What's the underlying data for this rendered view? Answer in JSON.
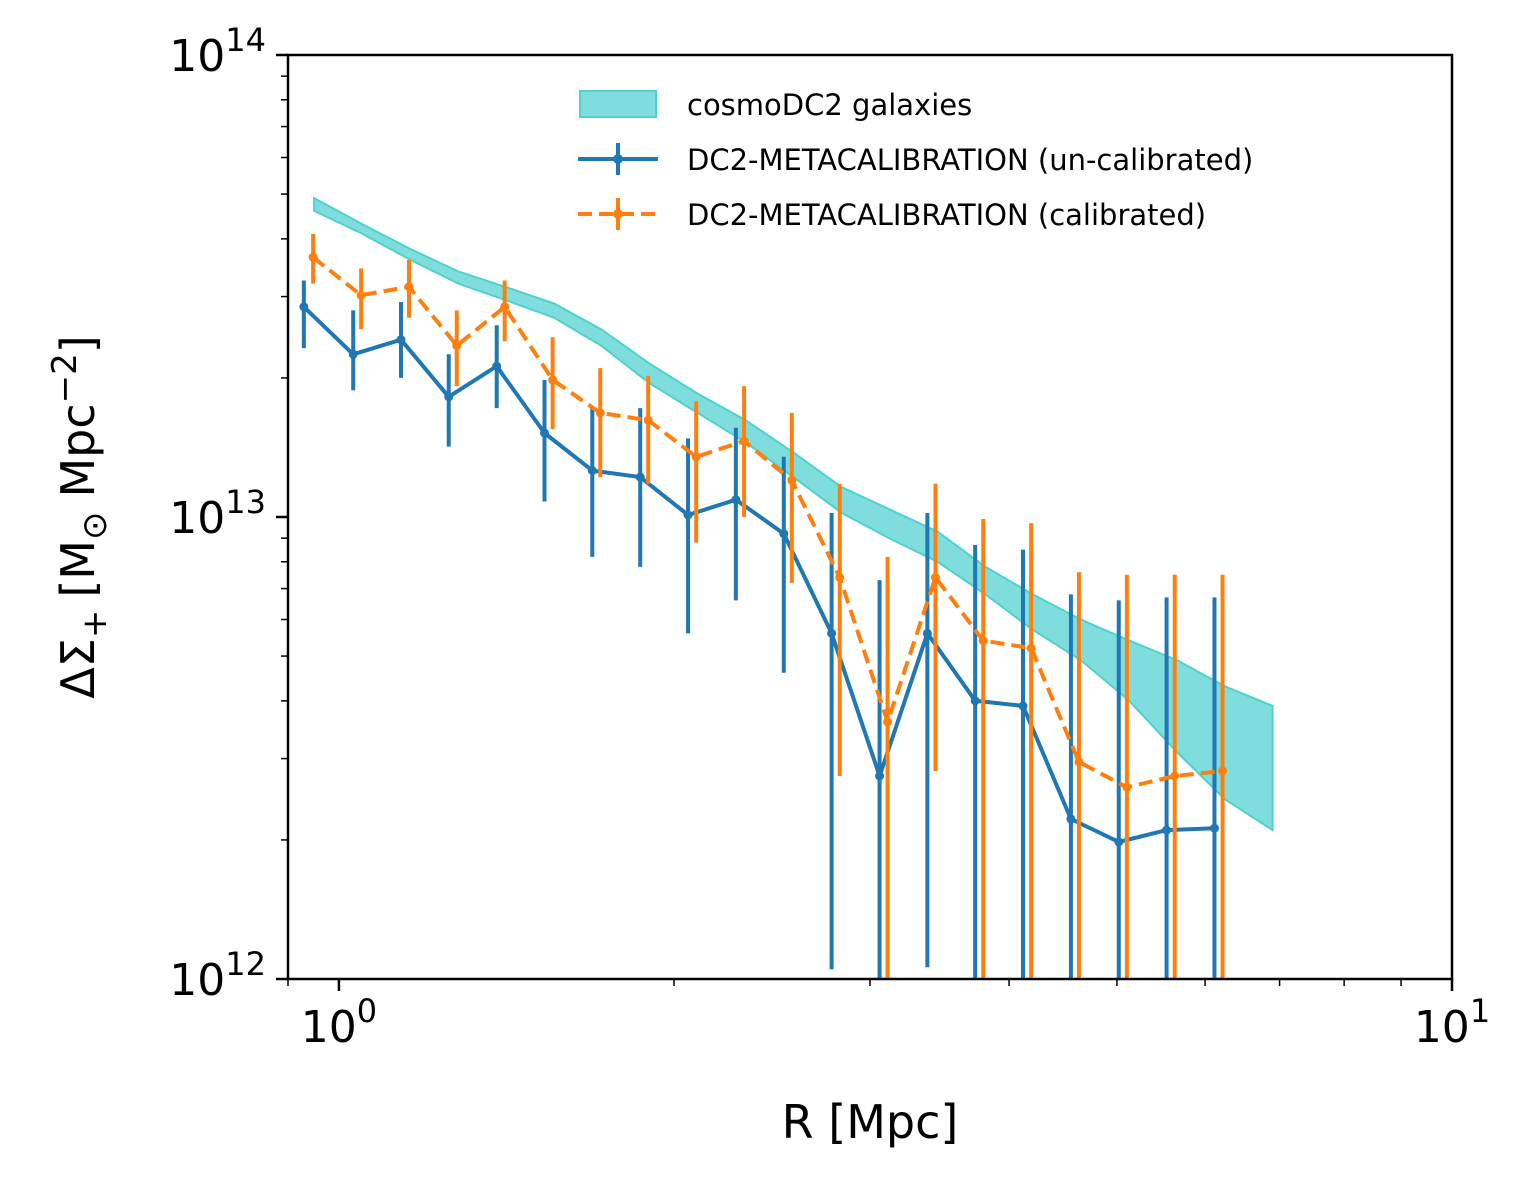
{
  "chart_data": {
    "type": "line",
    "xscale": "log",
    "yscale": "log",
    "xlim": [
      0.9,
      10
    ],
    "ylim": [
      1000000000000.0,
      100000000000000.0
    ],
    "xlabel": "R [Mpc]",
    "ylabel": "ΔΣ₊ [M⊙ Mpc⁻²]",
    "ylabel_parts": {
      "main": "ΔΣ",
      "sub": "+",
      "bracket_open": "[M",
      "sun": "⊙",
      "unit": "Mpc",
      "exp": "−2",
      "bracket_close": "]"
    },
    "x_ticks": [
      {
        "base": "10",
        "exp": "0",
        "value": 1
      },
      {
        "base": "10",
        "exp": "1",
        "value": 10
      }
    ],
    "y_ticks": [
      {
        "base": "10",
        "exp": "12",
        "value": 1000000000000.0
      },
      {
        "base": "10",
        "exp": "13",
        "value": 10000000000000.0
      },
      {
        "base": "10",
        "exp": "14",
        "value": 100000000000000.0
      }
    ],
    "legend_position": "upper-right",
    "band": {
      "name": "cosmoDC2 galaxies",
      "color": "#7fdedd",
      "edge_color": "#4fd1cc",
      "x": [
        0.95,
        1.05,
        1.16,
        1.28,
        1.41,
        1.56,
        1.72,
        1.9,
        2.1,
        2.32,
        2.56,
        2.83,
        3.12,
        3.45,
        3.81,
        4.2,
        4.64,
        5.13,
        5.66,
        6.25,
        6.9
      ],
      "lower": [
        46000000000000.0,
        41000000000000.0,
        36000000000000.0,
        32000000000000.0,
        29500000000000.0,
        27000000000000.0,
        23500000000000.0,
        19500000000000.0,
        16800000000000.0,
        14500000000000.0,
        12200000000000.0,
        10200000000000.0,
        9000000000000.0,
        8000000000000.0,
        6800000000000.0,
        5700000000000.0,
        4900000000000.0,
        4000000000000.0,
        3100000000000.0,
        2450000000000.0,
        2100000000000.0
      ],
      "upper": [
        49000000000000.0,
        43000000000000.0,
        38000000000000.0,
        34000000000000.0,
        31500000000000.0,
        29000000000000.0,
        25500000000000.0,
        21500000000000.0,
        18500000000000.0,
        16200000000000.0,
        13800000000000.0,
        11600000000000.0,
        10400000000000.0,
        9300000000000.0,
        7800000000000.0,
        6800000000000.0,
        6000000000000.0,
        5400000000000.0,
        4900000000000.0,
        4300000000000.0,
        3900000000000.0
      ]
    },
    "series": [
      {
        "name": "DC2-METACALIBRATION (un-calibrated)",
        "color": "#1f77b4",
        "dashed": false,
        "x": [
          0.93,
          1.03,
          1.137,
          1.255,
          1.386,
          1.53,
          1.689,
          1.865,
          2.059,
          2.273,
          2.51,
          2.771,
          3.06,
          3.378,
          3.729,
          4.117,
          4.546,
          5.019,
          5.541,
          6.118
        ],
        "y": [
          28500000000000.0,
          22500000000000.0,
          24200000000000.0,
          18200000000000.0,
          21200000000000.0,
          15200000000000.0,
          12600000000000.0,
          12200000000000.0,
          10100000000000.0,
          10900000000000.0,
          9200000000000.0,
          5600000000000.0,
          2750000000000.0,
          5600000000000.0,
          4000000000000.0,
          3900000000000.0,
          2220000000000.0,
          1980000000000.0,
          2100000000000.0,
          2120000000000.0
        ],
        "y_low": [
          23200000000000.0,
          18800000000000.0,
          20000000000000.0,
          14200000000000.0,
          17200000000000.0,
          10800000000000.0,
          8200000000000.0,
          7800000000000.0,
          5600000000000.0,
          6600000000000.0,
          4600000000000.0,
          1050000000000.0,
          900000000000.0,
          1060000000000.0,
          900000000000.0,
          900000000000.0,
          900000000000.0,
          900000000000.0,
          900000000000.0,
          900000000000.0
        ],
        "y_high": [
          32500000000000.0,
          28000000000000.0,
          29200000000000.0,
          22500000000000.0,
          26000000000000.0,
          19800000000000.0,
          17200000000000.0,
          17200000000000.0,
          14800000000000.0,
          15600000000000.0,
          13500000000000.0,
          10200000000000.0,
          7300000000000.0,
          10200000000000.0,
          8700000000000.0,
          8500000000000.0,
          6800000000000.0,
          6600000000000.0,
          6700000000000.0,
          6700000000000.0
        ]
      },
      {
        "name": "DC2-METACALIBRATION (calibrated)",
        "color": "#ff7f0e",
        "dashed": true,
        "x": [
          0.948,
          1.047,
          1.156,
          1.276,
          1.409,
          1.556,
          1.717,
          1.896,
          2.094,
          2.312,
          2.552,
          2.818,
          3.111,
          3.435,
          3.792,
          4.187,
          4.622,
          5.104,
          5.635,
          6.221
        ],
        "y": [
          36500000000000.0,
          30200000000000.0,
          31500000000000.0,
          23500000000000.0,
          28500000000000.0,
          19800000000000.0,
          16800000000000.0,
          16200000000000.0,
          13500000000000.0,
          14600000000000.0,
          12000000000000.0,
          7400000000000.0,
          3600000000000.0,
          7400000000000.0,
          5400000000000.0,
          5200000000000.0,
          2950000000000.0,
          2600000000000.0,
          2750000000000.0,
          2820000000000.0
        ],
        "y_low": [
          32000000000000.0,
          25500000000000.0,
          27000000000000.0,
          19200000000000.0,
          24000000000000.0,
          15500000000000.0,
          12200000000000.0,
          11800000000000.0,
          8800000000000.0,
          10000000000000.0,
          7200000000000.0,
          2750000000000.0,
          900000000000.0,
          2820000000000.0,
          900000000000.0,
          900000000000.0,
          900000000000.0,
          900000000000.0,
          900000000000.0,
          900000000000.0
        ],
        "y_high": [
          41000000000000.0,
          34500000000000.0,
          36000000000000.0,
          28000000000000.0,
          32500000000000.0,
          24500000000000.0,
          21000000000000.0,
          20200000000000.0,
          17800000000000.0,
          19200000000000.0,
          16800000000000.0,
          11800000000000.0,
          8200000000000.0,
          11800000000000.0,
          9900000000000.0,
          9700000000000.0,
          7600000000000.0,
          7500000000000.0,
          7500000000000.0,
          7500000000000.0
        ]
      }
    ]
  }
}
